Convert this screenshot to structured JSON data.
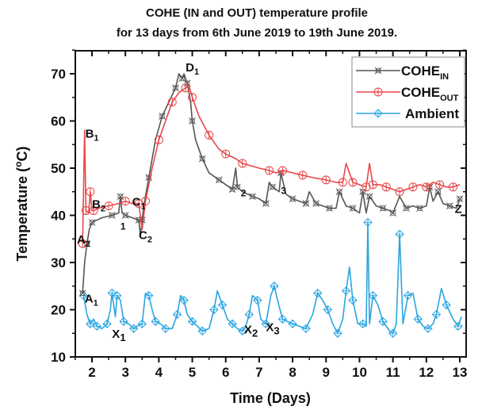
{
  "chart_data": {
    "type": "line",
    "title": "COHE (IN and OUT) temperature profile",
    "subtitle": "for 13 days from 6th June 2019 to 19th June 2019.",
    "xlabel": "Time (Days)",
    "ylabel": "Temperature (°C)",
    "xlim": [
      1.5,
      13.2
    ],
    "ylim": [
      10,
      75
    ],
    "x_ticks": [
      2,
      3,
      4,
      5,
      6,
      7,
      8,
      9,
      10,
      11,
      12,
      13
    ],
    "y_ticks": [
      10,
      20,
      30,
      40,
      50,
      60,
      70
    ],
    "grid": false,
    "legend_position": "top-right",
    "legend": [
      {
        "name": "COHE",
        "sub": "IN",
        "color": "#555555",
        "marker": "x-circle"
      },
      {
        "name": "COHE",
        "sub": "OUT",
        "color": "#e8474a",
        "marker": "circle"
      },
      {
        "name": "Ambient",
        "sub": "",
        "color": "#2aa5e0",
        "marker": "diamond"
      }
    ],
    "series": [
      {
        "name": "COHE_IN",
        "color": "#555555",
        "x": [
          1.72,
          1.78,
          1.85,
          1.92,
          2.0,
          2.3,
          2.6,
          2.8,
          2.85,
          2.9,
          3.0,
          3.2,
          3.4,
          3.45,
          3.5,
          3.55,
          3.7,
          3.9,
          4.1,
          4.3,
          4.5,
          4.6,
          4.7,
          4.75,
          4.85,
          4.95,
          5.0,
          5.1,
          5.3,
          5.5,
          5.8,
          6.0,
          6.2,
          6.3,
          6.35,
          6.5,
          6.8,
          7.0,
          7.2,
          7.3,
          7.4,
          7.6,
          7.65,
          7.8,
          8.0,
          8.2,
          8.4,
          8.5,
          8.7,
          8.9,
          9.1,
          9.3,
          9.4,
          9.6,
          9.8,
          10.0,
          10.1,
          10.2,
          10.3,
          10.5,
          10.7,
          10.9,
          11.0,
          11.2,
          11.4,
          11.6,
          11.8,
          12.0,
          12.1,
          12.2,
          12.35,
          12.5,
          12.7,
          12.9,
          13.0
        ],
        "y": [
          23.5,
          30,
          34,
          37,
          38.5,
          39.5,
          40,
          40.5,
          44,
          40.5,
          40,
          39.5,
          39,
          35.5,
          39,
          42,
          48,
          56,
          61,
          64,
          67,
          70,
          69,
          70,
          68,
          64,
          60,
          56,
          52,
          49,
          47.5,
          46.5,
          45.5,
          50,
          46,
          45,
          44,
          43.5,
          42.5,
          47,
          46,
          45,
          49,
          44.5,
          43.5,
          43,
          42.5,
          45,
          42.5,
          42,
          41.5,
          41.5,
          45,
          42,
          41.5,
          40.5,
          45,
          40.5,
          44,
          42,
          41.5,
          41,
          40.5,
          44,
          41.5,
          42,
          41.5,
          42,
          46,
          43,
          45,
          42.5,
          42,
          41.5,
          43.5
        ]
      },
      {
        "name": "COHE_OUT",
        "color": "#e8474a",
        "x": [
          1.72,
          1.78,
          1.82,
          1.9,
          1.95,
          2.0,
          2.05,
          2.2,
          2.5,
          2.8,
          3.0,
          3.2,
          3.4,
          3.5,
          3.6,
          3.8,
          4.0,
          4.2,
          4.4,
          4.6,
          4.8,
          4.9,
          5.0,
          5.2,
          5.5,
          5.8,
          6.0,
          6.3,
          6.5,
          7.0,
          7.3,
          7.5,
          7.7,
          8.0,
          8.3,
          8.6,
          9.0,
          9.3,
          9.5,
          9.6,
          9.8,
          10.0,
          10.2,
          10.3,
          10.4,
          10.6,
          10.8,
          11.0,
          11.2,
          11.4,
          11.6,
          11.8,
          12.0,
          12.2,
          12.4,
          12.6,
          12.8,
          13.0
        ],
        "y": [
          34,
          58,
          41,
          40.5,
          45,
          41,
          41,
          41.5,
          42,
          42.5,
          43,
          42.5,
          42.5,
          37,
          43,
          50,
          56,
          60,
          64,
          66,
          67,
          67.5,
          65,
          61,
          57,
          54,
          53,
          52,
          51,
          50,
          49.5,
          49,
          49.5,
          49,
          48.5,
          48,
          47.5,
          47,
          47,
          51,
          47,
          46.5,
          46,
          51,
          46.5,
          46.5,
          46,
          45.5,
          45,
          45.5,
          46,
          46.5,
          46,
          47,
          46.5,
          46,
          46,
          46.5
        ]
      },
      {
        "name": "Ambient",
        "color": "#2aa5e0",
        "x": [
          1.75,
          1.85,
          1.95,
          2.05,
          2.15,
          2.3,
          2.45,
          2.55,
          2.6,
          2.7,
          2.75,
          2.85,
          2.95,
          3.1,
          3.25,
          3.35,
          3.5,
          3.6,
          3.7,
          3.8,
          3.9,
          4.05,
          4.2,
          4.4,
          4.55,
          4.65,
          4.75,
          4.85,
          5.0,
          5.15,
          5.3,
          5.5,
          5.65,
          5.75,
          5.9,
          6.05,
          6.2,
          6.35,
          6.5,
          6.6,
          6.7,
          6.8,
          6.95,
          7.05,
          7.2,
          7.35,
          7.45,
          7.55,
          7.7,
          7.85,
          8.0,
          8.2,
          8.4,
          8.6,
          8.75,
          8.9,
          9.05,
          9.2,
          9.35,
          9.5,
          9.6,
          9.7,
          9.8,
          9.95,
          10.1,
          10.2,
          10.25,
          10.3,
          10.4,
          10.55,
          10.7,
          10.9,
          11.0,
          11.1,
          11.2,
          11.3,
          11.45,
          11.6,
          11.75,
          11.9,
          12.05,
          12.2,
          12.3,
          12.45,
          12.6,
          12.8,
          12.95,
          13.05
        ],
        "y": [
          23,
          19,
          17,
          18,
          16.5,
          16,
          17,
          20,
          23.5,
          18.5,
          23,
          22,
          17.5,
          17,
          16,
          16.5,
          17,
          23.5,
          23,
          20,
          17.5,
          17,
          16,
          16,
          19,
          23,
          22,
          19,
          17.5,
          16.5,
          15.5,
          16,
          20,
          24,
          21,
          18,
          17,
          16,
          15.5,
          16.5,
          19,
          23,
          22,
          18,
          17,
          23,
          25,
          22,
          18,
          17.5,
          17,
          16.5,
          16,
          19,
          23.5,
          22,
          20,
          17,
          15,
          18,
          24,
          29,
          22,
          17,
          17,
          16.5,
          38.5,
          17,
          23,
          21,
          17.5,
          15.5,
          15,
          17,
          36,
          17,
          23,
          23.5,
          18,
          16.5,
          16,
          17,
          19,
          24.5,
          21,
          18,
          16.5,
          18.5
        ]
      }
    ],
    "annotations": [
      {
        "label": "A",
        "sub": "1",
        "x": 1.78,
        "y": 21.5
      },
      {
        "label": "A",
        "sub": "2",
        "x": 1.55,
        "y": 34
      },
      {
        "label": "B",
        "sub": "1",
        "x": 1.8,
        "y": 56.5
      },
      {
        "label": "B",
        "sub": "2",
        "x": 2.0,
        "y": 41.5
      },
      {
        "label": "C",
        "sub": "1",
        "x": 3.2,
        "y": 42
      },
      {
        "label": "C",
        "sub": "2",
        "x": 3.4,
        "y": 35
      },
      {
        "label": "D",
        "sub": "1",
        "x": 4.8,
        "y": 70.5
      },
      {
        "label": "1",
        "sub": "",
        "x": 2.85,
        "y": 37
      },
      {
        "label": "2",
        "sub": "",
        "x": 6.45,
        "y": 44
      },
      {
        "label": "3",
        "sub": "",
        "x": 7.65,
        "y": 44.5
      },
      {
        "label": "X",
        "sub": "1",
        "x": 2.6,
        "y": 14
      },
      {
        "label": "X",
        "sub": "2",
        "x": 6.55,
        "y": 15
      },
      {
        "label": "X",
        "sub": "3",
        "x": 7.2,
        "y": 15.5
      },
      {
        "label": "Z",
        "sub": "",
        "x": 12.85,
        "y": 40.5
      }
    ]
  }
}
